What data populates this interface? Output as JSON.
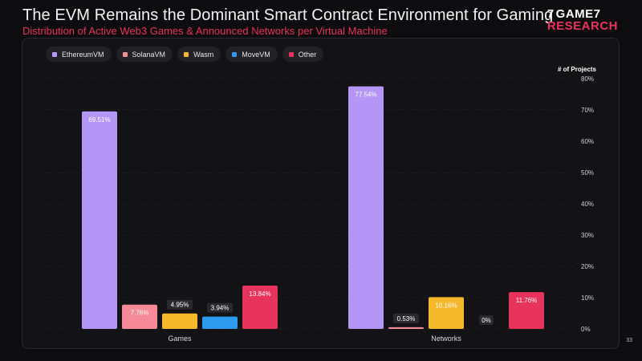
{
  "slide": {
    "title": "The EVM Remains the Dominant Smart Contract Environment for Gaming",
    "subtitle": "Distribution of Active Web3 Games & Announced Networks per Virtual Machine",
    "logo_top": "GAME7",
    "logo_bottom": "RESEARCH",
    "logo_mark": "7",
    "page_number": "33"
  },
  "colors": {
    "EthereumVM": "#b396f5",
    "SolanaVM": "#f78a98",
    "Wasm": "#f5b82a",
    "MoveVM": "#2f9bef",
    "Other": "#e8335c"
  },
  "chart_data": {
    "type": "bar",
    "title": "",
    "ylabel": "# of Projects",
    "xlabel": "",
    "ylim": [
      0,
      80
    ],
    "yticks": [
      "0%",
      "10%",
      "20%",
      "30%",
      "40%",
      "50%",
      "60%",
      "70%",
      "80%"
    ],
    "grid": true,
    "legend_position": "top-left",
    "categories": [
      "Games",
      "Networks"
    ],
    "series": [
      {
        "name": "EthereumVM",
        "values": [
          69.51,
          77.54
        ],
        "labels": [
          "69.51%",
          "77.54%"
        ]
      },
      {
        "name": "SolanaVM",
        "values": [
          7.76,
          0.53
        ],
        "labels": [
          "7.76%",
          "0.53%"
        ]
      },
      {
        "name": "Wasm",
        "values": [
          4.95,
          10.16
        ],
        "labels": [
          "4.95%",
          "10.16%"
        ]
      },
      {
        "name": "MoveVM",
        "values": [
          3.94,
          0
        ],
        "labels": [
          "3.94%",
          "0%"
        ]
      },
      {
        "name": "Other",
        "values": [
          13.84,
          11.76
        ],
        "labels": [
          "13.84%",
          "11.76%"
        ]
      }
    ]
  }
}
